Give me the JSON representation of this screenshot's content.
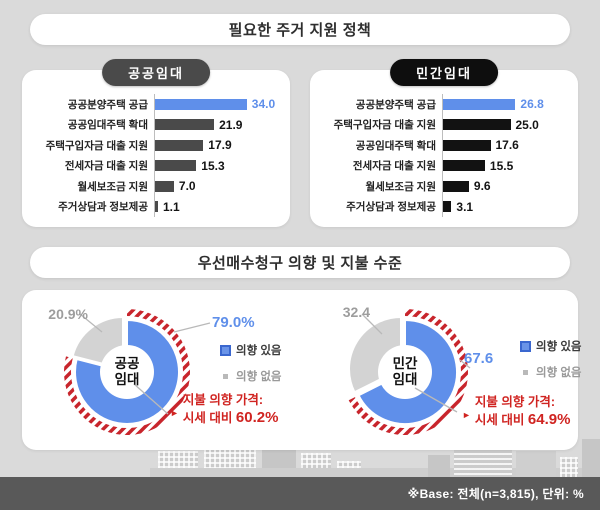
{
  "page": {
    "title1": "필요한 주거 지원 정책",
    "title2": "우선매수청구 의향 및 지불 수준",
    "footer_note": "※Base: 전체(n=3,815), 단위: %"
  },
  "legend": {
    "yes_label": "의향 있음",
    "no_label": "의향 없음"
  },
  "colors": {
    "accent_blue": "#5f8fea",
    "bar_dark": "#4a4a4a",
    "bar_black": "#121212",
    "slice_gray": "#d3d3d3",
    "hatch_red": "#c8252c",
    "note_red": "#d02421",
    "footer_bg": "#595959"
  },
  "chart_data": [
    {
      "type": "bar",
      "title": "공공임대",
      "orientation": "horizontal",
      "unit": "%",
      "xlim": [
        0,
        40
      ],
      "categories": [
        "공공분양주택 공급",
        "공공임대주택 확대",
        "주택구입자금 대출 지원",
        "전세자금 대출 지원",
        "월세보조금 지원",
        "주거상담과 정보제공"
      ],
      "values": [
        34.0,
        21.9,
        17.9,
        15.3,
        7.0,
        1.1
      ],
      "highlight_index": 0
    },
    {
      "type": "bar",
      "title": "민간임대",
      "orientation": "horizontal",
      "unit": "%",
      "xlim": [
        0,
        40
      ],
      "categories": [
        "공공분양주택 공급",
        "주택구입자금 대출 지원",
        "공공임대주택 확대",
        "전세자금 대출 지원",
        "월세보조금 지원",
        "주거상담과 정보제공"
      ],
      "values": [
        26.8,
        25.0,
        17.6,
        15.5,
        9.6,
        3.1
      ],
      "highlight_index": 0
    },
    {
      "type": "pie",
      "title": "공공임대",
      "center_label_line1": "공공",
      "center_label_line2": "임대",
      "slices": [
        {
          "label": "의향 있음",
          "value": 79.0,
          "display": "79.0%"
        },
        {
          "label": "의향 없음",
          "value": 20.9,
          "display": "20.9%"
        }
      ],
      "note_line1": "지불 의향 가격:",
      "note_line2_prefix": "시세 대비",
      "note_line2_value": "60.2%"
    },
    {
      "type": "pie",
      "title": "민간임대",
      "center_label_line1": "민간",
      "center_label_line2": "임대",
      "slices": [
        {
          "label": "의향 있음",
          "value": 67.6,
          "display": "67.6"
        },
        {
          "label": "의향 없음",
          "value": 32.4,
          "display": "32.4"
        }
      ],
      "note_line1": "지불 의향 가격:",
      "note_line2_prefix": "시세 대비",
      "note_line2_value": "64.9%"
    }
  ]
}
